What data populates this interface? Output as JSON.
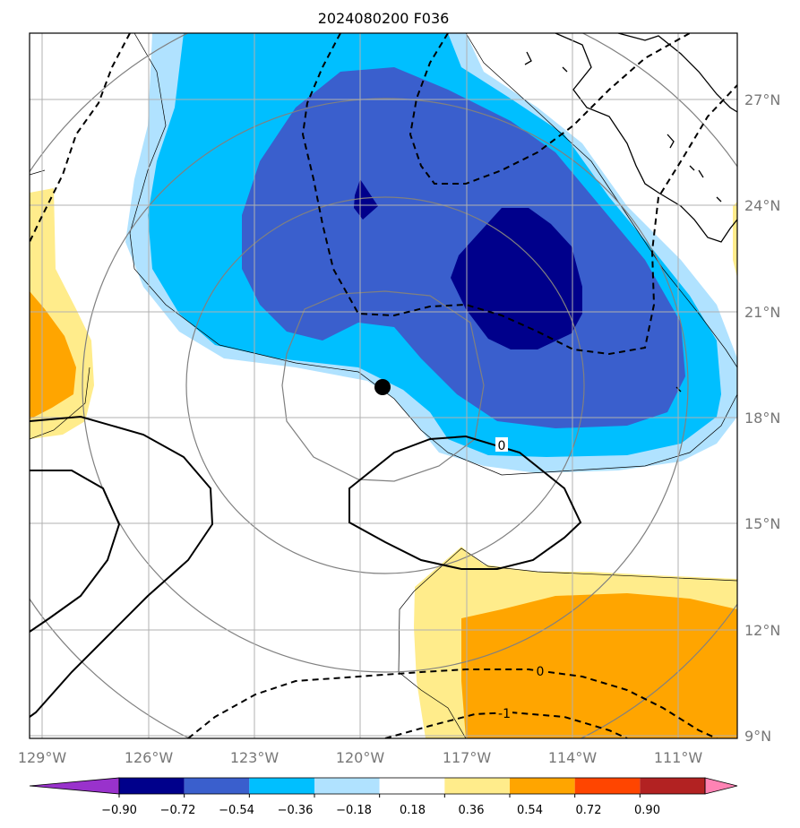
{
  "title": "2024080200 F036",
  "map": {
    "lon_ticks": [
      "129°W",
      "126°W",
      "123°W",
      "120°W",
      "117°W",
      "114°W",
      "111°W"
    ],
    "lat_ticks": [
      "27°N",
      "24°N",
      "21°N",
      "18°N",
      "15°N",
      "12°N",
      "9°N"
    ],
    "contour_labels": [
      "0",
      "0",
      "-1"
    ],
    "storm_marker": "storm-center-dot"
  },
  "colorbar": {
    "ticks": [
      "−0.90",
      "−0.72",
      "−0.54",
      "−0.36",
      "−0.18",
      "0.18",
      "0.36",
      "0.54",
      "0.72",
      "0.90"
    ],
    "colors": [
      "#9932cc",
      "#00008b",
      "#3a5fcd",
      "#00bfff",
      "#b0e2ff",
      "#ffffff",
      "#ffec8b",
      "#ffa500",
      "#ff4500",
      "#b22222",
      "#ff83b4"
    ]
  }
}
